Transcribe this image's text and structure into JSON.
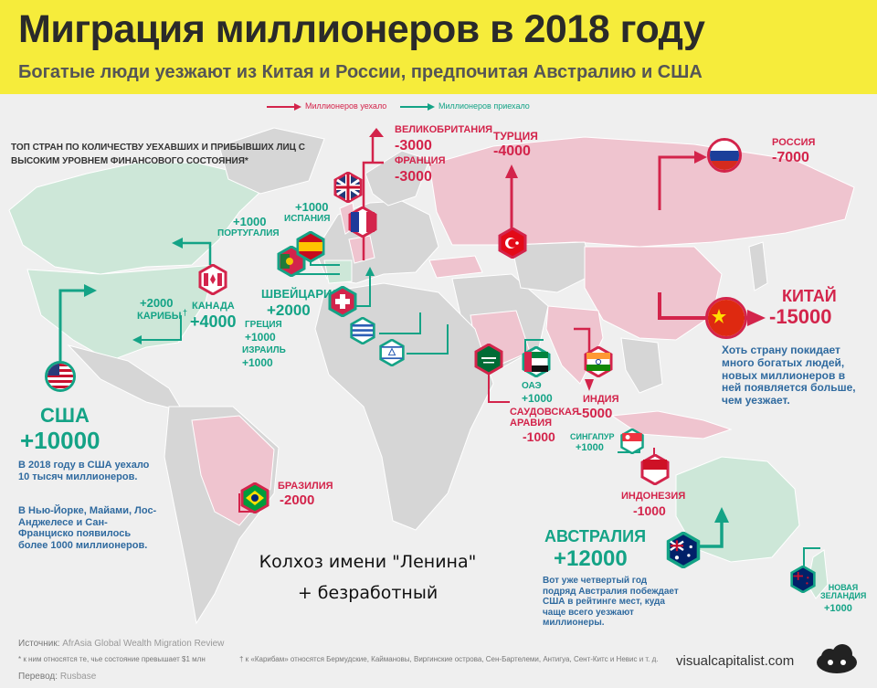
{
  "header": {
    "title": "Миграция миллионеров в 2018 году",
    "subtitle": "Богатые люди уезжают из Китая и России, предпочитая Австралию и США"
  },
  "legend": {
    "left": "Миллионеров уехало",
    "right": "Миллионеров приехало",
    "left_color": "#d3244b",
    "right_color": "#14a386"
  },
  "intro": "ТОП СТРАН ПО КОЛИЧЕСТВУ УЕХАВШИХ И ПРИБЫВШИХ ЛИЦ С ВЫСОКИМ УРОВНЕМ ФИНАНСОВОГО СОСТОЯНИЯ*",
  "countries": {
    "usa": {
      "name": "США",
      "value": "+10000"
    },
    "canada": {
      "name": "КАНАДА",
      "value": "+4000"
    },
    "caribbean": {
      "name": "КАРИБЫ",
      "value": "+2000",
      "mark": "†"
    },
    "portugal": {
      "name": "ПОРТУГАЛИЯ",
      "value": "+1000"
    },
    "spain": {
      "name": "ИСПАНИЯ",
      "value": "+1000"
    },
    "uk": {
      "name": "ВЕЛИКОБРИТАНИЯ",
      "value": "-3000"
    },
    "france": {
      "name": "ФРАНЦИЯ",
      "value": "-3000"
    },
    "switzerland": {
      "name": "ШВЕЙЦАРИЯ",
      "value": "+2000"
    },
    "greece": {
      "name": "ГРЕЦИЯ",
      "value": "+1000"
    },
    "israel": {
      "name": "ИЗРАИЛЬ",
      "value": "+1000"
    },
    "turkey": {
      "name": "ТУРЦИЯ",
      "value": "-4000"
    },
    "russia": {
      "name": "РОССИЯ",
      "value": "-7000"
    },
    "china": {
      "name": "КИТАЙ",
      "value": "-15000"
    },
    "uae": {
      "name": "ОАЭ",
      "value": "+1000"
    },
    "saudi": {
      "name": "САУДОВСКАЯ АРАВИЯ",
      "value": "-1000"
    },
    "india": {
      "name": "ИНДИЯ",
      "value": "-5000"
    },
    "singapore": {
      "name": "СИНГАПУР",
      "value": "+1000"
    },
    "indonesia": {
      "name": "ИНДОНЕЗИЯ",
      "value": "-1000"
    },
    "brazil": {
      "name": "БРАЗИЛИЯ",
      "value": "-2000"
    },
    "australia": {
      "name": "АВСТРАЛИЯ",
      "value": "+12000"
    },
    "newzealand": {
      "name": "НОВАЯ ЗЕЛАНДИЯ",
      "value": "+1000"
    }
  },
  "notes": {
    "usa_1": "В 2018 году в США уехало 10 тысяч миллионеров.",
    "usa_2": "В Нью-Йорке, Майами, Лос-Анджелесе и Сан-Франциско появилось более 1000 миллионеров.",
    "china": "Хоть страну покидает много богатых людей, новых миллионеров в ней появляется больше, чем уезжает.",
    "australia": "Вот уже четвертый год подряд Австралия побеждает США в рейтинге мест, куда чаще всего уезжают миллионеры."
  },
  "overlay": {
    "line1": "Колхоз имени \"Ленина\"",
    "line2": "+ безработный"
  },
  "footer": {
    "source_label": "Источник:",
    "source_value": "AfrAsia Global Wealth Migration Review",
    "footnote": "* к ним относятся те, чье состояние превышает $1 млн",
    "caribbean_note": "† к «Карибам» относятся Бермудские, Каймановы, Виргинские острова, Сен-Бартелеми, Антигуа, Сент-Китс и Невис и т. д.",
    "translation_label": "Перевод:",
    "translation_value": "Rusbase",
    "brand": "visualcapitalist.com"
  },
  "colors": {
    "header_bg": "#f6ec3b",
    "outflow": "#d3244b",
    "inflow": "#14a386",
    "outflow_land": "#efc4cf",
    "inflow_land": "#cde7d8",
    "neutral_land": "#d6d6d6"
  },
  "icons": {
    "brand_logo": "cloud-logo-icon"
  }
}
